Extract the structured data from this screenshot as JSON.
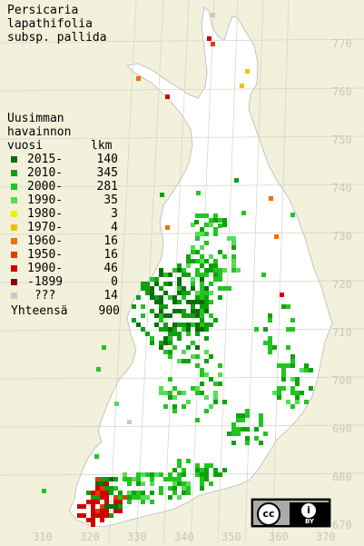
{
  "title": {
    "line1": "Persicaria",
    "line2": "lapathifolia",
    "line3": "subsp. pallida"
  },
  "legend": {
    "heading1": "Uusimman",
    "heading2": "havainnon",
    "col_year": "vuosi",
    "col_count": "lkm",
    "rows": [
      {
        "label": "2015-",
        "count": "140",
        "color": "#0a6e0a"
      },
      {
        "label": "2010-",
        "count": "345",
        "color": "#10a010"
      },
      {
        "label": "2000-",
        "count": "281",
        "color": "#22c422"
      },
      {
        "label": "1990-",
        "count": "35",
        "color": "#55dd55"
      },
      {
        "label": "1980-",
        "count": "3",
        "color": "#f0f000"
      },
      {
        "label": "1970-",
        "count": "4",
        "color": "#f0c000"
      },
      {
        "label": "1960-",
        "count": "16",
        "color": "#f07000"
      },
      {
        "label": "1950-",
        "count": "16",
        "color": "#e03c00"
      },
      {
        "label": "1900-",
        "count": "46",
        "color": "#d00000"
      },
      {
        "label": "-1899",
        "count": "0",
        "color": "#8a0000"
      },
      {
        "label": " ???",
        "count": "14",
        "color": "#c8c8c8"
      }
    ],
    "total_label": "Yhteensä",
    "total_count": "900"
  },
  "y_ticks": [
    "770",
    "760",
    "750",
    "740",
    "730",
    "720",
    "710",
    "700",
    "690",
    "680",
    "670"
  ],
  "x_ticks": [
    "310",
    "320",
    "330",
    "340",
    "350",
    "360",
    "370"
  ],
  "map_colors": {
    "land": "#ffffff",
    "background": "#f2f1db",
    "grid": "#c8c8bc",
    "border": "#bbbbbb"
  },
  "license_badge": {
    "cc": "cc",
    "by": "BY",
    "icon": "attribution-icon"
  }
}
